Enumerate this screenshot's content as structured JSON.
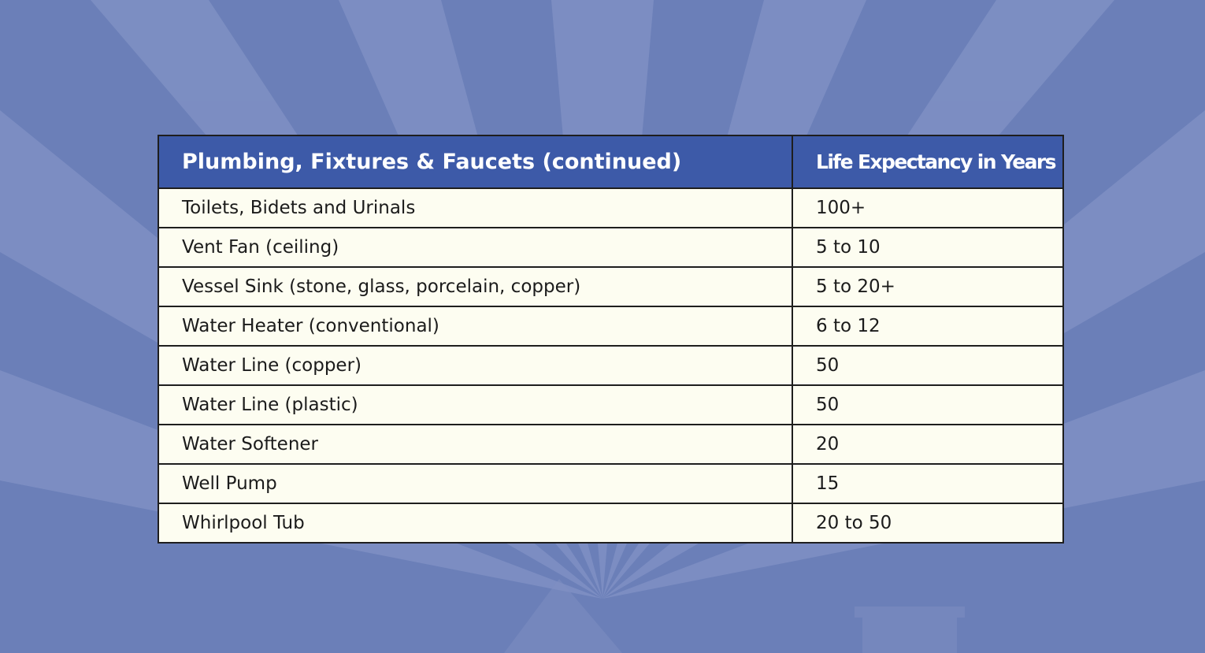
{
  "table": {
    "headers": [
      "Plumbing, Fixtures & Faucets (continued)",
      "Life Expectancy in Years"
    ],
    "rows": [
      [
        "Toilets, Bidets and Urinals",
        "100+"
      ],
      [
        "Vent Fan (ceiling)",
        "5 to 10"
      ],
      [
        "Vessel Sink (stone, glass, porcelain, copper)",
        "5 to 20+"
      ],
      [
        "Water Heater (conventional)",
        "6 to 12"
      ],
      [
        "Water Line (copper)",
        "50"
      ],
      [
        "Water Line (plastic)",
        "50"
      ],
      [
        "Water Softener",
        "20"
      ],
      [
        "Well Pump",
        "15"
      ],
      [
        "Whirlpool Tub",
        "20 to 50"
      ]
    ]
  },
  "colors": {
    "background": "#6b7fb8",
    "header_bg": "#3d5aa8",
    "cell_bg": "#fdfdf1",
    "border": "#1e1e1e"
  }
}
